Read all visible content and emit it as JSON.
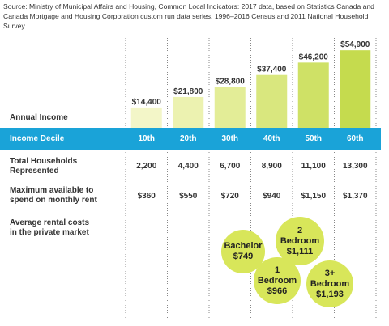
{
  "source": "Source: Ministry of Municipal Affairs and Housing, Common Local Indicators: 2017 data, based on Statistics Canada and Canada Mortgage and Housing Corporation custom run data series, 1996–2016 Census and 2011 National Household Survey",
  "rows": {
    "annual_income": "Annual Income",
    "income_decile": "Income Decile",
    "total_households": [
      "Total Households",
      "Represented"
    ],
    "max_rent": [
      "Maximum available to",
      "spend on monthly rent"
    ],
    "avg_rent": [
      "Average rental costs",
      "in the private market"
    ]
  },
  "chart_data": {
    "type": "bar",
    "categories": [
      "10th",
      "20th",
      "30th",
      "40th",
      "50th",
      "60th"
    ],
    "values": [
      14400,
      21800,
      28800,
      37400,
      46200,
      54900
    ],
    "data_labels": [
      "$14,400",
      "$21,800",
      "$28,800",
      "$37,400",
      "$46,200",
      "$54,900"
    ],
    "total_households": [
      "2,200",
      "4,400",
      "6,700",
      "8,900",
      "11,100",
      "13,300"
    ],
    "max_monthly_rent": [
      "$360",
      "$550",
      "$720",
      "$940",
      "$1,150",
      "$1,370"
    ],
    "bar_colors": [
      "#f3f6c8",
      "#ecf2b0",
      "#e3ed97",
      "#d9e77e",
      "#cfe166",
      "#c5db4e"
    ],
    "ylim": [
      0,
      55000
    ]
  },
  "rental_costs": [
    {
      "label": [
        "Bachelor"
      ],
      "value": "$749"
    },
    {
      "label": [
        "2",
        "Bedroom"
      ],
      "value": "$1,111"
    },
    {
      "label": [
        "1",
        "Bedroom"
      ],
      "value": "$966"
    },
    {
      "label": [
        "3+",
        "Bedroom"
      ],
      "value": "$1,193"
    }
  ],
  "colors": {
    "accent": "#1aa3d8",
    "bubble": "#d8e65a",
    "divider": "#888888"
  }
}
